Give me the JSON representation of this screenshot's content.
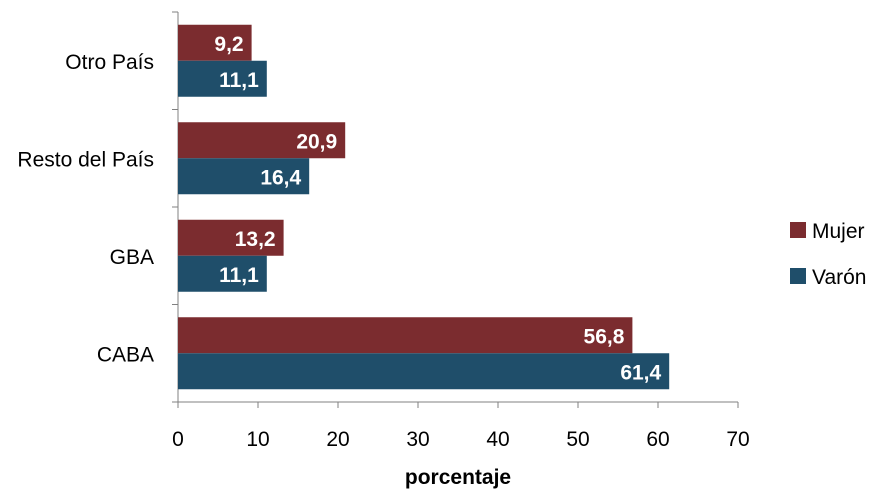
{
  "chart_data": {
    "type": "bar",
    "orientation": "horizontal",
    "categories": [
      "Otro País",
      "Resto del País",
      "GBA",
      "CABA"
    ],
    "series": [
      {
        "name": "Mujer",
        "color": "#7b2c2f",
        "values": [
          9.2,
          20.9,
          13.2,
          56.8
        ],
        "labels": [
          "9,2",
          "20,9",
          "13,2",
          "56,8"
        ]
      },
      {
        "name": "Varón",
        "color": "#1f4e6a",
        "values": [
          11.1,
          16.4,
          11.1,
          61.4
        ],
        "labels": [
          "11,1",
          "16,4",
          "11,1",
          "61,4"
        ]
      }
    ],
    "xlabel": "porcentaje",
    "xlim": [
      0,
      70
    ],
    "xticks": [
      0,
      10,
      20,
      30,
      40,
      50,
      60,
      70
    ],
    "grid": false,
    "legend_position": "right"
  }
}
